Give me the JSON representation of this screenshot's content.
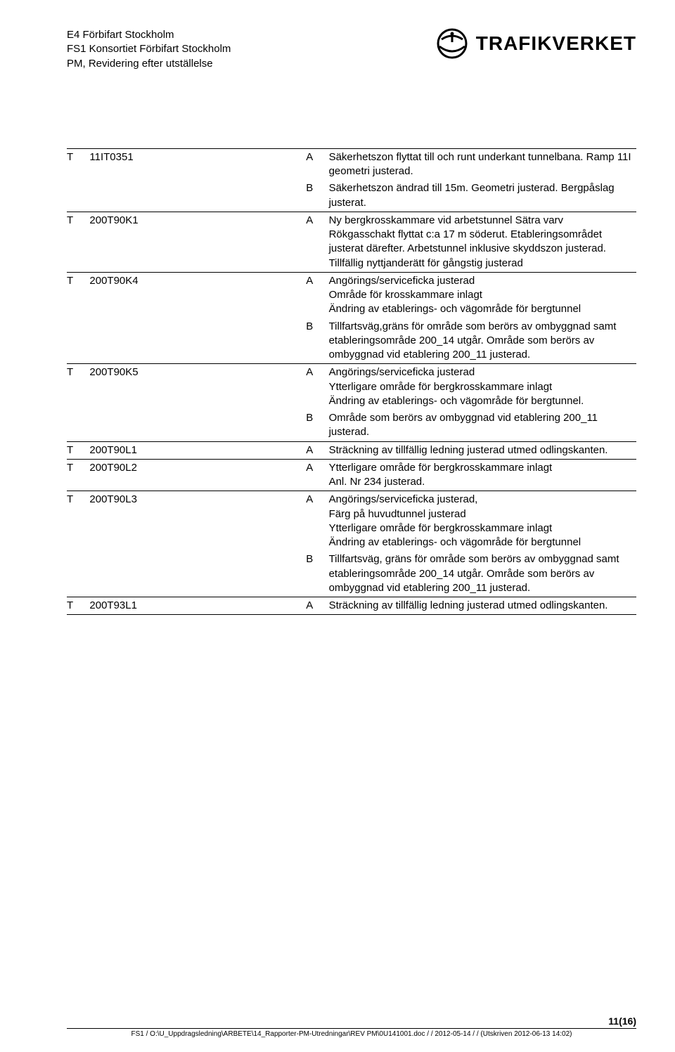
{
  "header": {
    "line1": "E4 Förbifart Stockholm",
    "line2": "FS1 Konsortiet Förbifart Stockholm",
    "line3": "PM, Revidering efter utställelse",
    "logo_text": "TRAFIKVERKET"
  },
  "rows": [
    {
      "t": "T",
      "id": "11IT0351",
      "code": "A",
      "desc": "Säkerhetszon flyttat till och runt underkant tunnelbana. Ramp 11I geometri justerad.",
      "top": true
    },
    {
      "t": "",
      "id": "",
      "code": "B",
      "desc": "Säkerhetszon ändrad till 15m. Geometri justerad. Bergpåslag justerat."
    },
    {
      "t": "T",
      "id": "200T90K1",
      "code": "A",
      "desc": "Ny bergkrosskammare vid arbetstunnel Sätra varv\nRökgasschakt flyttat c:a 17 m söderut. Etableringsområdet justerat därefter. Arbetstunnel inklusive skyddszon justerad.\nTillfällig nyttjanderätt för gångstig justerad",
      "top": true
    },
    {
      "t": "T",
      "id": "200T90K4",
      "code": "A",
      "desc": "Angörings/serviceficka justerad\nOmråde för krosskammare inlagt\nÄndring av etablerings- och vägområde för bergtunnel",
      "top": true
    },
    {
      "t": "",
      "id": "",
      "code": "B",
      "desc": "Tillfartsväg,gräns för område som berörs av ombyggnad samt etableringsområde 200_14 utgår. Område som berörs av ombyggnad vid etablering 200_11 justerad."
    },
    {
      "t": "T",
      "id": "200T90K5",
      "code": "A",
      "desc": "Angörings/serviceficka justerad\nYtterligare område för bergkrosskammare inlagt\nÄndring av etablerings- och vägområde för bergtunnel.",
      "top": true
    },
    {
      "t": "",
      "id": "",
      "code": "B",
      "desc": "Område som berörs av ombyggnad vid etablering 200_11 justerad."
    },
    {
      "t": "T",
      "id": "200T90L1",
      "code": "A",
      "desc": "Sträckning av tillfällig ledning justerad utmed odlingskanten.",
      "top": true
    },
    {
      "t": "T",
      "id": "200T90L2",
      "code": "A",
      "desc": "Ytterligare område för bergkrosskammare inlagt\nAnl. Nr 234 justerad.",
      "top": true
    },
    {
      "t": "T",
      "id": "200T90L3",
      "code": "A",
      "desc": "Angörings/serviceficka justerad,\nFärg på huvudtunnel justerad\nYtterligare område för bergkrosskammare inlagt\nÄndring av etablerings- och vägområde för bergtunnel",
      "top": true
    },
    {
      "t": "",
      "id": "",
      "code": "B",
      "desc": "Tillfartsväg, gräns för område som berörs av ombyggnad samt etableringsområde 200_14 utgår. Område som berörs av ombyggnad vid etablering 200_11 justerad."
    },
    {
      "t": "T",
      "id": "200T93L1",
      "code": "A",
      "desc": "Sträckning av tillfällig ledning justerad utmed odlingskanten.",
      "top": true,
      "bottom": true
    }
  ],
  "footer": {
    "page_num": "11(16)",
    "path": "FS1 / O:\\U_Uppdragsledning\\ARBETE\\14_Rapporter-PM-Utredningar\\REV PM\\0U141001.doc /  / 2012-05-14 /  / (Utskriven 2012-06-13 14:02)"
  }
}
